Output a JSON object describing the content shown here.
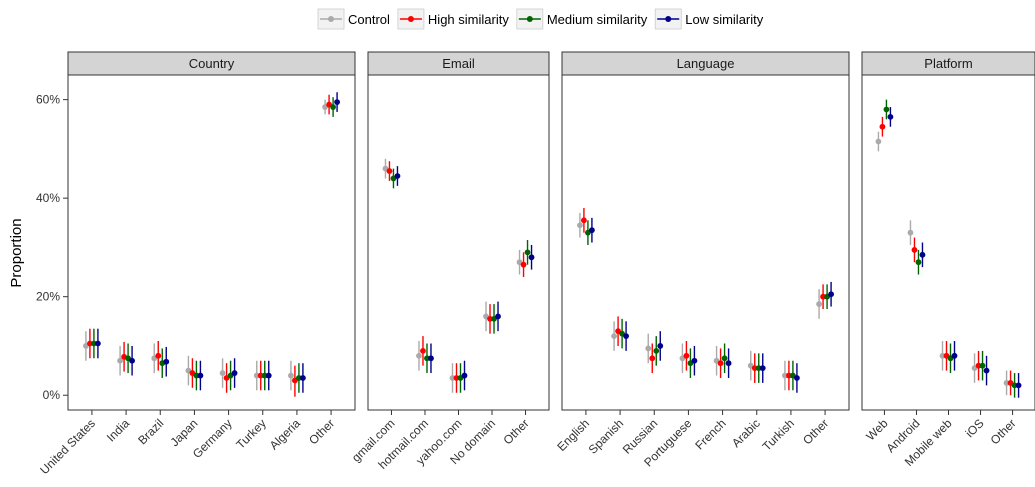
{
  "chart_data": {
    "type": "scatter",
    "ylabel": "Proportion",
    "ylim": [
      -0.03,
      0.65
    ],
    "yticks": [
      0,
      0.2,
      0.4,
      0.6
    ],
    "ytick_labels": [
      "0%",
      "20%",
      "40%",
      "60%"
    ],
    "legend": {
      "placement": "top-center",
      "entries": [
        "Control",
        "High similarity",
        "Medium similarity",
        "Low similarity"
      ]
    },
    "series_colors": {
      "Control": "#aaaaaa",
      "High similarity": "#ff0000",
      "Medium similarity": "#006400",
      "Low similarity": "#00008b"
    },
    "panels": [
      {
        "title": "Country",
        "categories": [
          "United States",
          "India",
          "Brazil",
          "Japan",
          "Germany",
          "Turkey",
          "Algeria",
          "Other"
        ],
        "series": [
          {
            "name": "Control",
            "values": [
              0.1,
              0.07,
              0.075,
              0.05,
              0.045,
              0.04,
              0.04,
              0.585
            ],
            "lower": [
              0.07,
              0.04,
              0.045,
              0.02,
              0.015,
              0.01,
              0.01,
              0.57
            ],
            "upper": [
              0.13,
              0.1,
              0.105,
              0.08,
              0.075,
              0.07,
              0.07,
              0.6
            ]
          },
          {
            "name": "High similarity",
            "values": [
              0.105,
              0.078,
              0.08,
              0.045,
              0.035,
              0.04,
              0.03,
              0.59
            ],
            "lower": [
              0.075,
              0.048,
              0.05,
              0.015,
              0.005,
              0.01,
              -0.003,
              0.57
            ],
            "upper": [
              0.135,
              0.108,
              0.11,
              0.075,
              0.065,
              0.07,
              0.06,
              0.61
            ]
          },
          {
            "name": "Medium similarity",
            "values": [
              0.105,
              0.075,
              0.065,
              0.04,
              0.04,
              0.04,
              0.035,
              0.585
            ],
            "lower": [
              0.075,
              0.045,
              0.035,
              0.01,
              0.01,
              0.01,
              0.005,
              0.565
            ],
            "upper": [
              0.135,
              0.105,
              0.095,
              0.07,
              0.07,
              0.07,
              0.065,
              0.605
            ]
          },
          {
            "name": "Low similarity",
            "values": [
              0.105,
              0.07,
              0.068,
              0.04,
              0.045,
              0.04,
              0.035,
              0.595
            ],
            "lower": [
              0.075,
              0.04,
              0.038,
              0.01,
              0.015,
              0.01,
              0.005,
              0.575
            ],
            "upper": [
              0.135,
              0.1,
              0.098,
              0.07,
              0.075,
              0.07,
              0.065,
              0.615
            ]
          }
        ]
      },
      {
        "title": "Email",
        "categories": [
          "gmail.com",
          "hotmail.com",
          "yahoo.com",
          "No domain",
          "Other"
        ],
        "series": [
          {
            "name": "Control",
            "values": [
              0.46,
              0.08,
              0.035,
              0.16,
              0.27
            ],
            "lower": [
              0.44,
              0.05,
              0.005,
              0.13,
              0.245
            ],
            "upper": [
              0.48,
              0.11,
              0.065,
              0.19,
              0.295
            ]
          },
          {
            "name": "High similarity",
            "values": [
              0.455,
              0.09,
              0.035,
              0.155,
              0.265
            ],
            "lower": [
              0.435,
              0.06,
              0.005,
              0.125,
              0.24
            ],
            "upper": [
              0.475,
              0.12,
              0.065,
              0.185,
              0.29
            ]
          },
          {
            "name": "Medium similarity",
            "values": [
              0.44,
              0.075,
              0.035,
              0.155,
              0.29
            ],
            "lower": [
              0.42,
              0.045,
              0.005,
              0.125,
              0.265
            ],
            "upper": [
              0.46,
              0.105,
              0.065,
              0.185,
              0.315
            ]
          },
          {
            "name": "Low similarity",
            "values": [
              0.445,
              0.075,
              0.04,
              0.16,
              0.28
            ],
            "lower": [
              0.425,
              0.045,
              0.01,
              0.13,
              0.255
            ],
            "upper": [
              0.465,
              0.105,
              0.07,
              0.19,
              0.305
            ]
          }
        ]
      },
      {
        "title": "Language",
        "categories": [
          "English",
          "Spanish",
          "Russian",
          "Portuguese",
          "French",
          "Arabic",
          "Turkish",
          "Other"
        ],
        "series": [
          {
            "name": "Control",
            "values": [
              0.345,
              0.12,
              0.095,
              0.075,
              0.07,
              0.06,
              0.04,
              0.185
            ],
            "lower": [
              0.32,
              0.09,
              0.065,
              0.045,
              0.04,
              0.03,
              0.01,
              0.155
            ],
            "upper": [
              0.37,
              0.15,
              0.125,
              0.105,
              0.1,
              0.09,
              0.07,
              0.215
            ]
          },
          {
            "name": "High similarity",
            "values": [
              0.355,
              0.13,
              0.075,
              0.08,
              0.065,
              0.055,
              0.04,
              0.2
            ],
            "lower": [
              0.33,
              0.1,
              0.045,
              0.05,
              0.035,
              0.025,
              0.01,
              0.175
            ],
            "upper": [
              0.38,
              0.16,
              0.105,
              0.11,
              0.095,
              0.085,
              0.07,
              0.225
            ]
          },
          {
            "name": "Medium similarity",
            "values": [
              0.33,
              0.125,
              0.09,
              0.065,
              0.075,
              0.055,
              0.04,
              0.2
            ],
            "lower": [
              0.305,
              0.095,
              0.06,
              0.035,
              0.045,
              0.025,
              0.01,
              0.175
            ],
            "upper": [
              0.355,
              0.155,
              0.12,
              0.095,
              0.105,
              0.085,
              0.07,
              0.225
            ]
          },
          {
            "name": "Low similarity",
            "values": [
              0.335,
              0.12,
              0.1,
              0.07,
              0.065,
              0.055,
              0.035,
              0.205
            ],
            "lower": [
              0.31,
              0.09,
              0.07,
              0.04,
              0.035,
              0.025,
              0.005,
              0.18
            ],
            "upper": [
              0.36,
              0.15,
              0.13,
              0.1,
              0.095,
              0.085,
              0.065,
              0.23
            ]
          }
        ]
      },
      {
        "title": "Platform",
        "categories": [
          "Web",
          "Android",
          "Mobile web",
          "iOS",
          "Other"
        ],
        "series": [
          {
            "name": "Control",
            "values": [
              0.515,
              0.33,
              0.08,
              0.055,
              0.025
            ],
            "lower": [
              0.495,
              0.305,
              0.05,
              0.025,
              0.0
            ],
            "upper": [
              0.535,
              0.355,
              0.11,
              0.085,
              0.05
            ]
          },
          {
            "name": "High similarity",
            "values": [
              0.545,
              0.295,
              0.08,
              0.06,
              0.025
            ],
            "lower": [
              0.525,
              0.27,
              0.05,
              0.03,
              0.0
            ],
            "upper": [
              0.565,
              0.32,
              0.11,
              0.09,
              0.05
            ]
          },
          {
            "name": "Medium similarity",
            "values": [
              0.58,
              0.27,
              0.075,
              0.06,
              0.02
            ],
            "lower": [
              0.56,
              0.245,
              0.045,
              0.03,
              -0.005
            ],
            "upper": [
              0.6,
              0.295,
              0.105,
              0.09,
              0.045
            ]
          },
          {
            "name": "Low similarity",
            "values": [
              0.565,
              0.285,
              0.08,
              0.05,
              0.02
            ],
            "lower": [
              0.545,
              0.26,
              0.05,
              0.02,
              -0.005
            ],
            "upper": [
              0.585,
              0.31,
              0.11,
              0.08,
              0.045
            ]
          }
        ]
      }
    ]
  }
}
